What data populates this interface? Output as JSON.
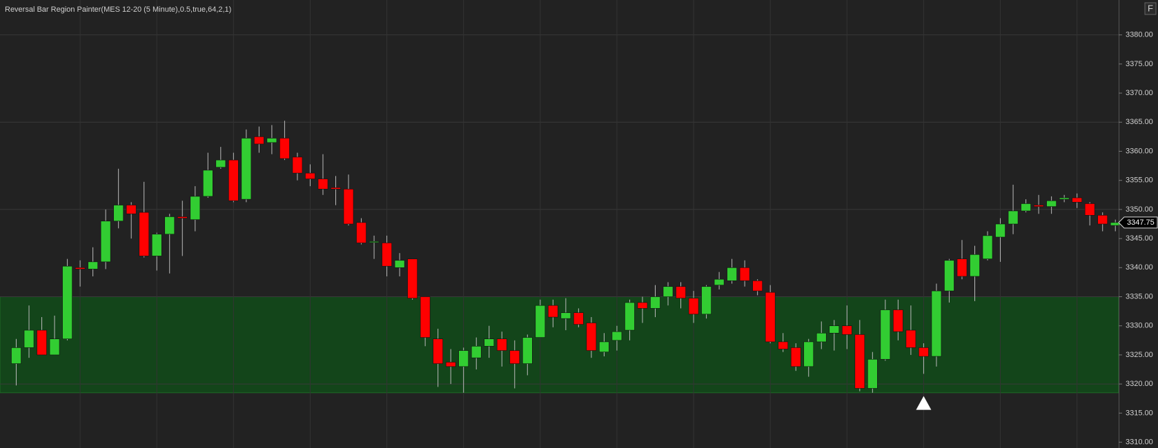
{
  "chart_data": {
    "type": "candlestick",
    "title": "Reversal Bar Region Painter(MES 12-20 (5 Minute),0.5,true,64,2,1)",
    "button": "F",
    "open": [
      3323.5,
      3326.25,
      3329.25,
      3325,
      3327.75,
      3340,
      3339.75,
      3341,
      3348,
      3350.75,
      3349.5,
      3342,
      3345.75,
      3348.75,
      3348.25,
      3352.25,
      3357.25,
      3358.5,
      3351.75,
      3362.5,
      3361.5,
      3362.25,
      3359,
      3356.25,
      3355.25,
      3353.75,
      3353.5,
      3347.75,
      3344.5,
      3344.25,
      3340,
      3341.5,
      3335,
      3327.75,
      3323.75,
      3323,
      3324.5,
      3326.5,
      3327.75,
      3325.75,
      3323.5,
      3328,
      3333.5,
      3331.25,
      3332.25,
      3330.5,
      3325.5,
      3327.5,
      3329.25,
      3334,
      3333,
      3335,
      3336.75,
      3334.75,
      3332,
      3337,
      3337.75,
      3340,
      3337.75,
      3335.75,
      3327.25,
      3326.25,
      3323,
      3327.25,
      3328.75,
      3330,
      3328.5,
      3319.25,
      3324.25,
      3332.75,
      3329.25,
      3326.25,
      3324.75,
      3336,
      3341.5,
      3338.5,
      3341.5,
      3345.25,
      3347.5,
      3349.75,
      3350.75,
      3350.5,
      3351.75,
      3352,
      3351,
      3349,
      3347.25
    ],
    "high": [
      3327.75,
      3333.5,
      3331.5,
      3331.75,
      3341.5,
      3341.25,
      3343.5,
      3350,
      3357,
      3351.25,
      3354.75,
      3346,
      3349.25,
      3351.5,
      3354,
      3359.75,
      3360.75,
      3359.75,
      3363.75,
      3364.25,
      3364.5,
      3365.25,
      3359.75,
      3357.75,
      3359.5,
      3355.75,
      3356,
      3348.5,
      3345.5,
      3345.5,
      3342.5,
      3341.5,
      3335,
      3329.5,
      3326,
      3326.25,
      3328,
      3330,
      3329,
      3327.5,
      3328.5,
      3334.5,
      3334.5,
      3334.75,
      3333,
      3331.5,
      3328.75,
      3330,
      3334.5,
      3335,
      3337,
      3337.5,
      3337.5,
      3336,
      3337,
      3339.25,
      3341.5,
      3341.25,
      3338,
      3337,
      3328.75,
      3327,
      3327.75,
      3330.75,
      3331,
      3333.5,
      3331,
      3325.5,
      3334.5,
      3334.5,
      3333.5,
      3327,
      3337.25,
      3341.5,
      3344.75,
      3343.75,
      3346.25,
      3348.5,
      3354.25,
      3351.75,
      3352.5,
      3352.25,
      3352.5,
      3352.75,
      3351.25,
      3349.5,
      3348.25
    ],
    "low": [
      3319.75,
      3324.5,
      3325,
      3325,
      3327.5,
      3336.75,
      3338.5,
      3339.75,
      3346.75,
      3345,
      3341.75,
      3339.5,
      3339,
      3342,
      3346.25,
      3352,
      3357,
      3351.25,
      3351.25,
      3359.75,
      3359.5,
      3358.5,
      3355,
      3354,
      3352.5,
      3350.75,
      3347.25,
      3344,
      3341.5,
      3338.5,
      3338.5,
      3334.5,
      3326.5,
      3319.5,
      3320,
      3318.5,
      3322.5,
      3324.5,
      3323,
      3319.25,
      3321.5,
      3328,
      3329.75,
      3329.25,
      3329.75,
      3324.5,
      3324.75,
      3325.75,
      3327.5,
      3330.5,
      3331.5,
      3333.5,
      3333,
      3330.5,
      3331.25,
      3336.25,
      3337.25,
      3336.75,
      3335.25,
      3327,
      3325.5,
      3322.25,
      3321.25,
      3326,
      3325.75,
      3326,
      3318.75,
      3318.5,
      3324,
      3327.5,
      3325,
      3321.75,
      3323,
      3334,
      3338,
      3334.25,
      3341.25,
      3341,
      3345.75,
      3349.5,
      3349.25,
      3349.25,
      3351.25,
      3350.25,
      3347.25,
      3346.25,
      3346.25
    ],
    "close": [
      3326.25,
      3329.25,
      3325,
      3327.75,
      3340.25,
      3339.75,
      3341,
      3348,
      3350.75,
      3349.25,
      3342,
      3345.75,
      3348.75,
      3348.5,
      3352.25,
      3356.75,
      3358.5,
      3351.5,
      3362.25,
      3361.25,
      3362.25,
      3358.75,
      3356.25,
      3355.25,
      3353.5,
      3353.5,
      3347.5,
      3344.25,
      3344.5,
      3340.25,
      3341.25,
      3334.75,
      3328,
      3323.5,
      3323,
      3325.75,
      3326.5,
      3327.75,
      3325.75,
      3323.5,
      3328,
      3333.5,
      3331.5,
      3332.25,
      3330.25,
      3325.75,
      3327.25,
      3329,
      3334,
      3333,
      3335,
      3336.75,
      3334.75,
      3332,
      3336.75,
      3338,
      3340,
      3337.75,
      3336,
      3327.25,
      3326,
      3323,
      3327.25,
      3328.75,
      3330,
      3328.5,
      3319.25,
      3324.25,
      3332.75,
      3329,
      3326.25,
      3324.75,
      3336,
      3341.25,
      3338.5,
      3342.25,
      3345.5,
      3347.5,
      3349.75,
      3351,
      3350.5,
      3351.5,
      3352,
      3351.25,
      3349,
      3347.5,
      3347.75
    ],
    "up_color": "#32cd32",
    "down_color": "#ff0000",
    "region": {
      "low": 3318.5,
      "high": 3335,
      "color": "#13451a"
    },
    "signal": {
      "index": 71,
      "value": 3316.75,
      "color": "#ffffff"
    },
    "ylim": [
      3309,
      3386
    ],
    "yticks": [
      {
        "value": 3310,
        "label": "3310.00"
      },
      {
        "value": 3315,
        "label": "3315.00"
      },
      {
        "value": 3320,
        "label": "3320.00"
      },
      {
        "value": 3325,
        "label": "3325.00"
      },
      {
        "value": 3330,
        "label": "3330.00"
      },
      {
        "value": 3335,
        "label": "3335.00"
      },
      {
        "value": 3340,
        "label": "3340.00"
      },
      {
        "value": 3345,
        "label": "3345.00"
      },
      {
        "value": 3350,
        "label": "3350.00"
      },
      {
        "value": 3355,
        "label": "3355.00"
      },
      {
        "value": 3360,
        "label": "3360.00"
      },
      {
        "value": 3365,
        "label": "3365.00"
      },
      {
        "value": 3370,
        "label": "3370.00"
      },
      {
        "value": 3375,
        "label": "3375.00"
      },
      {
        "value": 3380,
        "label": "3380.00"
      }
    ],
    "grid": true
  }
}
